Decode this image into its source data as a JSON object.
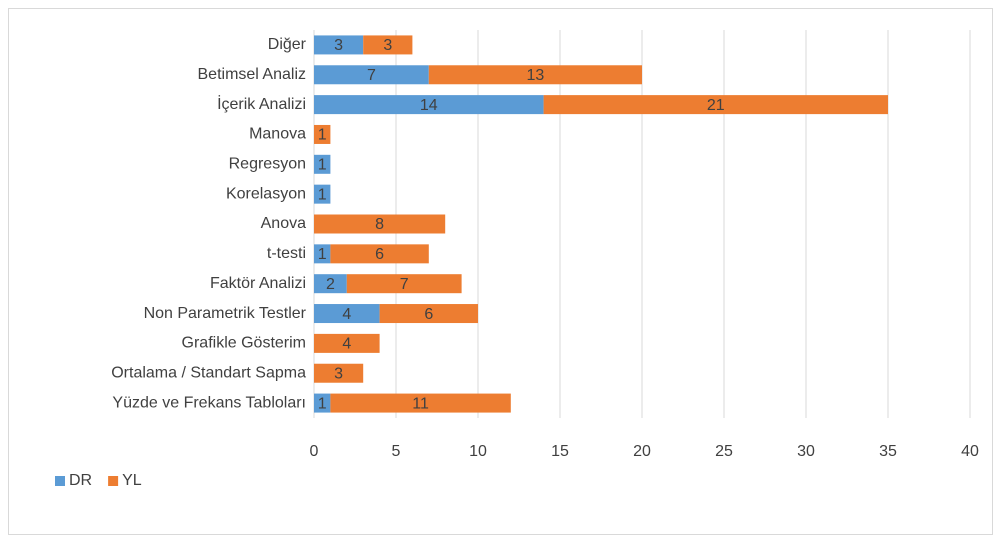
{
  "chart_data": {
    "type": "stacked_barh",
    "categories": [
      "Diğer",
      "Betimsel Analiz",
      "İçerik Analizi",
      "Manova",
      "Regresyon",
      "Korelasyon",
      "Anova",
      "t-testi",
      "Faktör Analizi",
      "Non Parametrik Testler",
      "Grafikle Gösterim",
      "Ortalama / Standart Sapma",
      "Yüzde ve Frekans Tabloları"
    ],
    "series": [
      {
        "name": "DR",
        "color": "#5b9bd5",
        "values": [
          3,
          7,
          14,
          null,
          1,
          1,
          null,
          1,
          2,
          4,
          null,
          null,
          1
        ]
      },
      {
        "name": "YL",
        "color": "#ed7d31",
        "values": [
          3,
          13,
          21,
          1,
          null,
          null,
          8,
          6,
          7,
          6,
          4,
          3,
          11
        ]
      }
    ],
    "xlim": [
      0,
      40
    ],
    "xticks": [
      0,
      5,
      10,
      15,
      20,
      25,
      30,
      35,
      40
    ],
    "grid": true,
    "legend": "bottom-left"
  }
}
